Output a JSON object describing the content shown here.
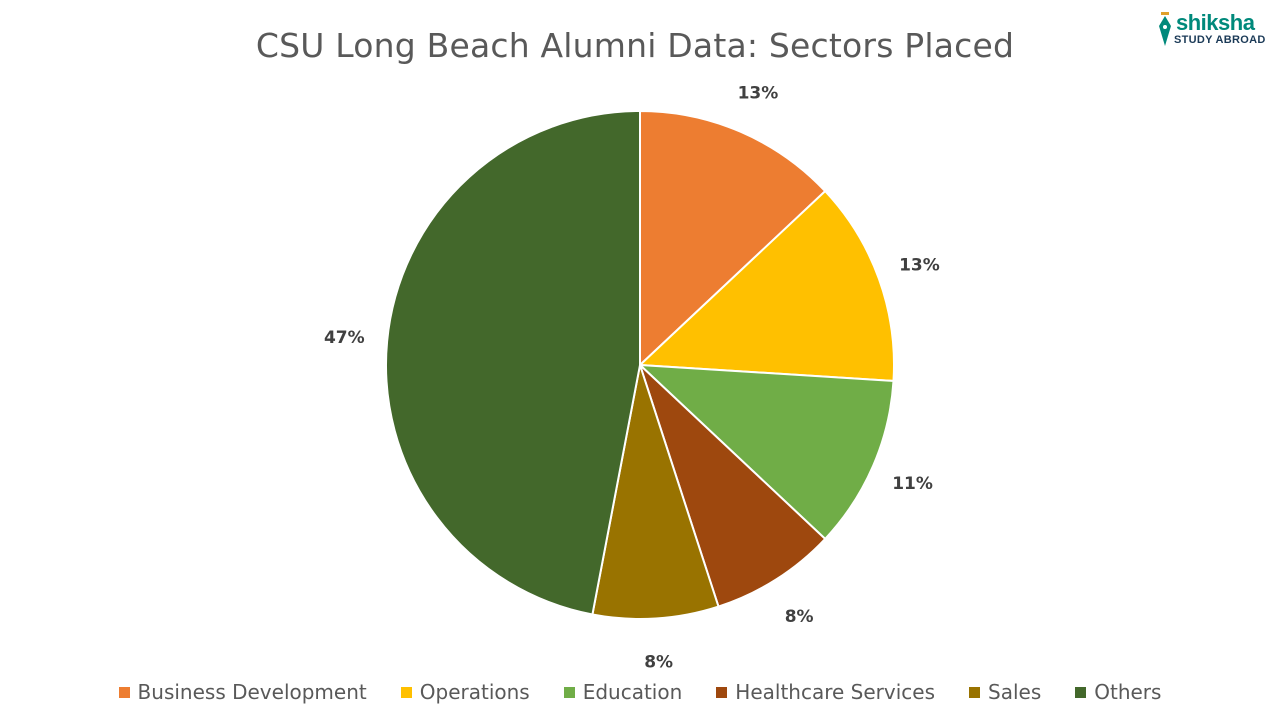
{
  "chart_data": {
    "type": "pie",
    "title": "CSU Long Beach Alumni Data: Sectors Placed",
    "categories": [
      "Business Development",
      "Operations",
      "Education",
      "Healthcare Services",
      "Sales",
      "Others"
    ],
    "values": [
      13,
      13,
      11,
      8,
      8,
      47
    ],
    "labels": [
      "13%",
      "13%",
      "11%",
      "8%",
      "8%",
      "47%"
    ],
    "colors": [
      "#ED7D31",
      "#FFC000",
      "#70AD47",
      "#9E480E",
      "#997300",
      "#43682B"
    ],
    "legend_position": "bottom"
  },
  "logo": {
    "brand": "shiksha",
    "sub": "STUDY ABROAD",
    "icon": "pen-nib-icon",
    "colors": [
      "#00897b",
      "#1b3a57"
    ]
  }
}
